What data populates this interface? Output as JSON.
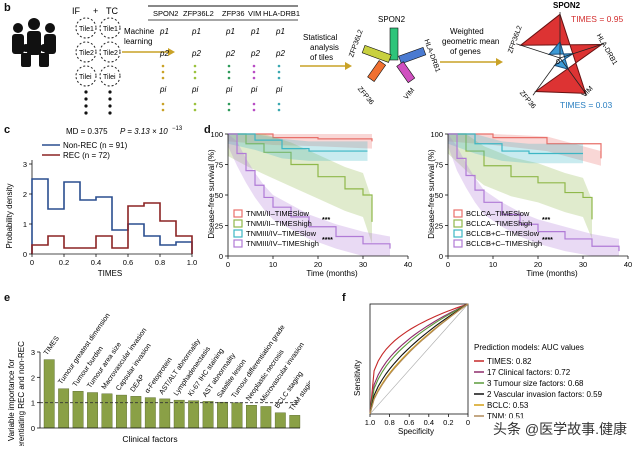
{
  "panel_b": {
    "label": "b",
    "if_tc": [
      "IF",
      "+",
      "TC"
    ],
    "tiles": [
      "Tile1",
      "Tile2",
      "Tilei"
    ],
    "step1": [
      "Machine",
      "learning"
    ],
    "genes": [
      "SPON2",
      "ZFP36L2",
      "ZFP36",
      "VIM",
      "HLA-DRB1"
    ],
    "p_rows": [
      "p1",
      "p2",
      "pi"
    ],
    "step2": [
      "Statistical",
      "analysis",
      "of tiles"
    ],
    "step3": [
      "Weighted",
      "geometric mean",
      "of genes"
    ],
    "radar_labels": [
      "SPON2",
      "ZFP36L2",
      "HLA-DRB1",
      "ZFP36",
      "VIM"
    ],
    "times_high": "TIMES = 0.95",
    "times_low": "TIMES = 0.03",
    "radar_ticks": [
      "0",
      "1"
    ]
  },
  "panel_c": {
    "label": "c",
    "stat": "MD = 0.375",
    "pval": "P = 3.13 × 10",
    "pexp": "−13",
    "legend": [
      {
        "name": "Non-REC (n = 91)",
        "color": "#2a4e8f"
      },
      {
        "name": "REC (n = 72)",
        "color": "#8b2323"
      }
    ],
    "ylabel": "Probability density",
    "xlabel": "TIMES",
    "chart_data": {
      "type": "histogram-step",
      "bins": [
        0.0,
        0.1,
        0.2,
        0.3,
        0.4,
        0.5,
        0.6,
        0.7,
        0.8,
        0.9,
        1.0
      ],
      "series": [
        {
          "name": "Non-REC",
          "values": [
            2.5,
            1.5,
            2.4,
            1.8,
            1.9,
            0.8,
            1.0,
            0.6,
            0.3,
            0.4
          ]
        },
        {
          "name": "REC",
          "values": [
            0.3,
            0.6,
            0.2,
            0.2,
            0.6,
            0.2,
            1.6,
            1.7,
            1.1,
            0.6
          ]
        }
      ],
      "xlim": [
        0,
        1.0
      ],
      "ylim": [
        0,
        3
      ],
      "xticks": [
        "0",
        "0.2",
        "0.4",
        "0.6",
        "0.8",
        "1.0"
      ],
      "yticks": [
        "0",
        "1",
        "2",
        "3"
      ]
    }
  },
  "panel_d": {
    "label": "d",
    "ylabel": "Disease-free survival (%)",
    "xlabel": "Time (months)",
    "yticks": [
      "0",
      "25",
      "50",
      "75",
      "100"
    ],
    "xticks": [
      "0",
      "10",
      "20",
      "30",
      "40"
    ],
    "left_legend": [
      "TNMI/II–TIMESlow",
      "TNMI/II–TIMEShigh",
      "TNMIII/IV–TIMESlow",
      "TNMIII/IV–TIMEShigh"
    ],
    "right_legend": [
      "BCLCA–TIMESlow",
      "BCLCA–TIMEShigh",
      "BCLCB+C–TIMESlow",
      "BCLCB+C–TIMEShigh"
    ],
    "colors": [
      "#e8706a",
      "#8fb84a",
      "#3cb6c4",
      "#b07ad6"
    ],
    "sig": [
      "***",
      "****"
    ]
  },
  "panel_e": {
    "label": "e",
    "ylabel": [
      "Variable importance for",
      "differentiating REC and non-REC"
    ],
    "xlabel": "Clinical factors",
    "yticks": [
      "0",
      "1",
      "2",
      "3"
    ],
    "chart_data": {
      "type": "bar",
      "categories": [
        "TIMES",
        "Tumour greatest dimension",
        "Tumour burden",
        "Tumour area size",
        "Macrovascular invasion",
        "Capsular invasion",
        "DEAP",
        "α-Fetoprotein",
        "AST/ALT abnormality",
        "Lymphadenectasis",
        "Ki-67 IHC staining",
        "AST abnormality",
        "Satellite lesion",
        "Tumour differentiation grade",
        "Neoplastic necrosis",
        "Microvascular invasion",
        "BCLC staging",
        "TNM staging"
      ],
      "values": [
        2.7,
        1.55,
        1.45,
        1.4,
        1.35,
        1.3,
        1.25,
        1.2,
        1.15,
        1.1,
        1.08,
        1.05,
        1.02,
        1.0,
        0.9,
        0.85,
        0.6,
        0.5
      ],
      "ylim": [
        0,
        3
      ]
    }
  },
  "panel_f": {
    "label": "f",
    "ylabel": "Sensitivity",
    "xlabel": "Specificity",
    "xticks": [
      "1.0",
      "0.8",
      "0.6",
      "0.4",
      "0.2",
      "0"
    ],
    "legend_title": "Prediction models: AUC values",
    "legend": [
      {
        "name": "TIMES: 0.82",
        "color": "#c62828"
      },
      {
        "name": "17 Clinical factors: 0.72",
        "color": "#8e2c6a"
      },
      {
        "name": "3 Tumour size factors: 0.68",
        "color": "#5a9a3a"
      },
      {
        "name": "2 Vascular invasion factors: 0.59",
        "color": "#111111"
      },
      {
        "name": "BCLC: 0.53",
        "color": "#d4a017"
      },
      {
        "name": "TNM: 0.51",
        "color": "#b08a5a"
      }
    ]
  },
  "watermark": "头条 @医学故事.健康"
}
